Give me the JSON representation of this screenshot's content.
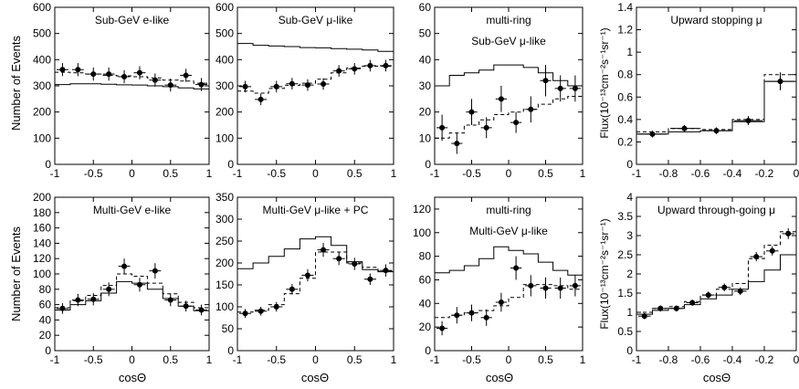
{
  "figure": {
    "ylabel_left_top": "Number of Events",
    "ylabel_left_bottom": "Number of Events",
    "ylabel_right_top": "Flux(10⁻¹³cm⁻²s⁻¹sr⁻¹)",
    "ylabel_right_bottom": "Flux(10⁻¹³cm⁻²s⁻¹sr⁻¹)",
    "xlabel": "cosΘ"
  },
  "chart_data": [
    {
      "type": "line",
      "title": "Sub-GeV e-like",
      "xlim": [
        -1,
        1
      ],
      "ylim": [
        0,
        600
      ],
      "xticks": [
        -1,
        -0.5,
        0,
        0.5,
        1
      ],
      "yticks": [
        0,
        100,
        200,
        300,
        400,
        500,
        600
      ],
      "bin_edges": [
        -1,
        -0.8,
        -0.6,
        -0.4,
        -0.2,
        0,
        0.2,
        0.4,
        0.6,
        0.8,
        1
      ],
      "series": [
        {
          "style": "solid",
          "values": [
            305,
            308,
            308,
            306,
            304,
            303,
            300,
            297,
            292,
            288
          ]
        },
        {
          "style": "dashed",
          "values": [
            352,
            350,
            345,
            340,
            338,
            335,
            330,
            322,
            318,
            310
          ]
        },
        {
          "style": "points",
          "values": [
            362,
            362,
            345,
            345,
            335,
            350,
            322,
            303,
            340,
            305
          ],
          "errors": [
            25,
            25,
            25,
            25,
            25,
            25,
            25,
            25,
            25,
            25
          ]
        }
      ]
    },
    {
      "type": "line",
      "title": "Sub-GeV μ-like",
      "xlim": [
        -1,
        1
      ],
      "ylim": [
        0,
        600
      ],
      "xticks": [
        -1,
        -0.5,
        0,
        0.5,
        1
      ],
      "yticks": [
        0,
        100,
        200,
        300,
        400,
        500,
        600
      ],
      "bin_edges": [
        -1,
        -0.8,
        -0.6,
        -0.4,
        -0.2,
        0,
        0.2,
        0.4,
        0.6,
        0.8,
        1
      ],
      "series": [
        {
          "style": "solid",
          "values": [
            462,
            455,
            452,
            450,
            446,
            445,
            442,
            440,
            437,
            432
          ]
        },
        {
          "style": "dashed",
          "values": [
            280,
            272,
            290,
            302,
            310,
            325,
            350,
            368,
            375,
            375
          ]
        },
        {
          "style": "points",
          "values": [
            297,
            248,
            297,
            308,
            303,
            307,
            357,
            365,
            377,
            377
          ],
          "errors": [
            22,
            22,
            22,
            22,
            22,
            22,
            22,
            22,
            22,
            22
          ]
        }
      ]
    },
    {
      "type": "line",
      "title": "multi-ring",
      "subtitle": "Sub-GeV μ-like",
      "xlim": [
        -1,
        1
      ],
      "ylim": [
        0,
        60
      ],
      "xticks": [
        -1,
        -0.5,
        0,
        0.5,
        1
      ],
      "yticks": [
        0,
        10,
        20,
        30,
        40,
        50,
        60
      ],
      "bin_edges": [
        -1,
        -0.8,
        -0.6,
        -0.4,
        -0.2,
        0,
        0.2,
        0.4,
        0.6,
        0.8,
        1
      ],
      "series": [
        {
          "style": "solid",
          "values": [
            30,
            34,
            35,
            36,
            38,
            38,
            37,
            35,
            32,
            30
          ]
        },
        {
          "style": "dashed",
          "values": [
            10,
            12,
            15,
            17,
            19,
            20,
            21,
            23,
            25,
            26
          ]
        },
        {
          "style": "points",
          "values": [
            14,
            8,
            20,
            14,
            25,
            16,
            21,
            32,
            29,
            29
          ],
          "errors": [
            5,
            4,
            5,
            4,
            5,
            4,
            5,
            6,
            5,
            5
          ]
        }
      ]
    },
    {
      "type": "line",
      "title": "Upward stopping μ",
      "xlim": [
        -1,
        0
      ],
      "ylim": [
        0,
        1.4
      ],
      "xticks": [
        -1,
        -0.8,
        -0.6,
        -0.4,
        -0.2,
        0
      ],
      "yticks": [
        0,
        0.2,
        0.4,
        0.6,
        0.8,
        1,
        1.2,
        1.4
      ],
      "bin_edges": [
        -1,
        -0.8,
        -0.6,
        -0.4,
        -0.2,
        0
      ],
      "series": [
        {
          "style": "solid",
          "values": [
            0.27,
            0.29,
            0.3,
            0.38,
            0.74
          ]
        },
        {
          "style": "dashed",
          "values": [
            0.29,
            0.32,
            0.31,
            0.4,
            0.8
          ]
        },
        {
          "style": "points",
          "values": [
            0.27,
            0.32,
            0.3,
            0.39,
            0.74
          ],
          "errors": [
            0.03,
            0.03,
            0.03,
            0.04,
            0.08
          ]
        }
      ]
    },
    {
      "type": "line",
      "title": "Multi-GeV e-like",
      "xlim": [
        -1,
        1
      ],
      "ylim": [
        0,
        200
      ],
      "xticks": [
        -1,
        -0.5,
        0,
        0.5,
        1
      ],
      "yticks": [
        0,
        20,
        40,
        60,
        80,
        100,
        120,
        140,
        160,
        180,
        200
      ],
      "bin_edges": [
        -1,
        -0.8,
        -0.6,
        -0.4,
        -0.2,
        0,
        0.2,
        0.4,
        0.6,
        0.8,
        1
      ],
      "series": [
        {
          "style": "solid",
          "values": [
            53,
            60,
            65,
            75,
            90,
            88,
            80,
            68,
            58,
            52
          ]
        },
        {
          "style": "dashed",
          "values": [
            56,
            65,
            72,
            85,
            100,
            97,
            88,
            74,
            63,
            56
          ]
        },
        {
          "style": "points",
          "values": [
            55,
            66,
            67,
            80,
            110,
            86,
            104,
            66,
            58,
            53
          ],
          "errors": [
            7,
            8,
            8,
            9,
            10,
            9,
            10,
            8,
            7,
            7
          ]
        }
      ]
    },
    {
      "type": "line",
      "title": "Multi-GeV μ-like + PC",
      "xlim": [
        -1,
        1
      ],
      "ylim": [
        0,
        350
      ],
      "xticks": [
        -1,
        -0.5,
        0,
        0.5,
        1
      ],
      "yticks": [
        0,
        50,
        100,
        150,
        200,
        250,
        300,
        350
      ],
      "bin_edges": [
        -1,
        -0.8,
        -0.6,
        -0.4,
        -0.2,
        0,
        0.2,
        0.4,
        0.6,
        0.8,
        1
      ],
      "series": [
        {
          "style": "solid",
          "values": [
            187,
            200,
            215,
            232,
            255,
            260,
            240,
            203,
            185,
            180
          ]
        },
        {
          "style": "dashed",
          "values": [
            88,
            92,
            105,
            130,
            165,
            225,
            225,
            200,
            190,
            182
          ]
        },
        {
          "style": "points",
          "values": [
            85,
            90,
            100,
            140,
            172,
            230,
            210,
            198,
            163,
            183
          ],
          "errors": [
            10,
            10,
            11,
            12,
            14,
            16,
            15,
            14,
            13,
            14
          ]
        }
      ]
    },
    {
      "type": "line",
      "title": "multi-ring",
      "subtitle": "Multi-GeV μ-like",
      "xlim": [
        -1,
        1
      ],
      "ylim": [
        0,
        130
      ],
      "xticks": [
        -1,
        -0.5,
        0,
        0.5,
        1
      ],
      "yticks": [
        0,
        20,
        40,
        60,
        80,
        100,
        120
      ],
      "bin_edges": [
        -1,
        -0.8,
        -0.6,
        -0.4,
        -0.2,
        0,
        0.2,
        0.4,
        0.6,
        0.8,
        1
      ],
      "series": [
        {
          "style": "solid",
          "values": [
            66,
            68,
            72,
            78,
            88,
            85,
            82,
            75,
            68,
            64
          ]
        },
        {
          "style": "dashed",
          "values": [
            28,
            30,
            32,
            34,
            38,
            45,
            56,
            56,
            55,
            52
          ]
        },
        {
          "style": "points",
          "values": [
            19,
            30,
            32,
            28,
            41,
            70,
            55,
            53,
            53,
            55
          ],
          "errors": [
            6,
            7,
            7,
            7,
            8,
            10,
            9,
            9,
            9,
            9
          ]
        }
      ]
    },
    {
      "type": "line",
      "title": "Upward through-going μ",
      "xlim": [
        -1,
        0
      ],
      "ylim": [
        0,
        4
      ],
      "xticks": [
        -1,
        -0.8,
        -0.6,
        -0.4,
        -0.2,
        0
      ],
      "yticks": [
        0,
        0.5,
        1,
        1.5,
        2,
        2.5,
        3,
        3.5,
        4
      ],
      "bin_edges": [
        -1,
        -0.9,
        -0.8,
        -0.7,
        -0.6,
        -0.5,
        -0.4,
        -0.3,
        -0.2,
        -0.1,
        0
      ],
      "series": [
        {
          "style": "solid",
          "values": [
            0.95,
            1.05,
            1.1,
            1.2,
            1.35,
            1.45,
            1.6,
            1.8,
            2.1,
            2.5
          ]
        },
        {
          "style": "dashed",
          "values": [
            1.0,
            1.1,
            1.15,
            1.28,
            1.45,
            1.6,
            1.75,
            2.4,
            2.75,
            3.1
          ]
        },
        {
          "style": "points",
          "values": [
            0.9,
            1.1,
            1.1,
            1.25,
            1.45,
            1.65,
            1.55,
            2.45,
            2.6,
            3.05
          ],
          "errors": [
            0.08,
            0.08,
            0.08,
            0.08,
            0.09,
            0.1,
            0.1,
            0.12,
            0.12,
            0.14
          ]
        }
      ]
    }
  ]
}
